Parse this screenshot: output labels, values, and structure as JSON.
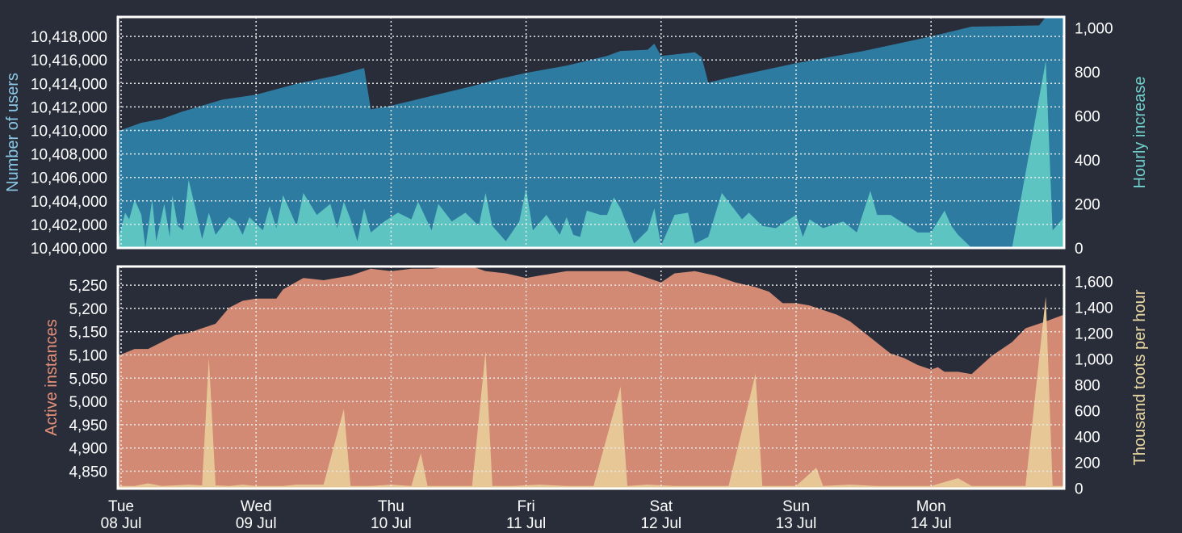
{
  "chart_data": [
    {
      "type": "area",
      "title": "",
      "x_categories": [
        {
          "day": "Tue",
          "date": "08 Jul"
        },
        {
          "day": "Wed",
          "date": "09 Jul"
        },
        {
          "day": "Thu",
          "date": "10 Jul"
        },
        {
          "day": "Fri",
          "date": "11 Jul"
        },
        {
          "day": "Sat",
          "date": "12 Jul"
        },
        {
          "day": "Sun",
          "date": "13 Jul"
        },
        {
          "day": "Mon",
          "date": "14 Jul"
        }
      ],
      "ylabel_left": "Number of users",
      "ylabel_right": "Hourly increase",
      "ylim_left": [
        10400000,
        10419000
      ],
      "ylim_right": [
        0,
        1050
      ],
      "yticks_left": [
        "10,400,000",
        "10,402,000",
        "10,404,000",
        "10,406,000",
        "10,408,000",
        "10,410,000",
        "10,412,000",
        "10,414,000",
        "10,416,000",
        "10,418,000"
      ],
      "yticks_right": [
        "0",
        "200",
        "400",
        "600",
        "800",
        "1,000"
      ],
      "grid": true,
      "series": [
        {
          "axis": "left",
          "color": "#2e7ba1",
          "points": [
            [
              0,
              10409600
            ],
            [
              0.15,
              10410300
            ],
            [
              0.3,
              10410600
            ],
            [
              0.45,
              10411200
            ],
            [
              0.6,
              10411700
            ],
            [
              0.75,
              10412200
            ],
            [
              1,
              10412600
            ],
            [
              1.3,
              10413500
            ],
            [
              1.6,
              10414200
            ],
            [
              1.8,
              10414800
            ],
            [
              1.85,
              10411400
            ],
            [
              2,
              10411700
            ],
            [
              2.3,
              10412500
            ],
            [
              2.6,
              10413300
            ],
            [
              2.8,
              10413900
            ],
            [
              3,
              10414400
            ],
            [
              3.3,
              10415000
            ],
            [
              3.6,
              10415800
            ],
            [
              3.7,
              10416200
            ],
            [
              3.9,
              10416300
            ],
            [
              3.95,
              10416800
            ],
            [
              4.0,
              10415800
            ],
            [
              4.25,
              10416100
            ],
            [
              4.3,
              10415700
            ],
            [
              4.35,
              10413600
            ],
            [
              4.5,
              10414000
            ],
            [
              5,
              10415200
            ],
            [
              5.5,
              10416200
            ],
            [
              6,
              10417400
            ],
            [
              6.3,
              10418200
            ],
            [
              6.8,
              10418300
            ],
            [
              6.85,
              10419000
            ],
            [
              7,
              10419000
            ]
          ]
        },
        {
          "axis": "right",
          "color": "#5ec4c2",
          "points": [
            [
              0,
              30
            ],
            [
              0.03,
              160
            ],
            [
              0.06,
              130
            ],
            [
              0.1,
              220
            ],
            [
              0.15,
              150
            ],
            [
              0.18,
              0
            ],
            [
              0.23,
              220
            ],
            [
              0.26,
              30
            ],
            [
              0.32,
              200
            ],
            [
              0.36,
              50
            ],
            [
              0.38,
              240
            ],
            [
              0.42,
              100
            ],
            [
              0.46,
              80
            ],
            [
              0.5,
              310
            ],
            [
              0.55,
              180
            ],
            [
              0.6,
              40
            ],
            [
              0.65,
              160
            ],
            [
              0.7,
              60
            ],
            [
              0.8,
              140
            ],
            [
              0.85,
              120
            ],
            [
              0.9,
              60
            ],
            [
              0.95,
              140
            ],
            [
              1.05,
              80
            ],
            [
              1.1,
              190
            ],
            [
              1.15,
              90
            ],
            [
              1.2,
              240
            ],
            [
              1.3,
              100
            ],
            [
              1.35,
              250
            ],
            [
              1.45,
              150
            ],
            [
              1.55,
              200
            ],
            [
              1.6,
              90
            ],
            [
              1.65,
              210
            ],
            [
              1.7,
              130
            ],
            [
              1.75,
              30
            ],
            [
              1.8,
              180
            ],
            [
              1.85,
              70
            ],
            [
              1.95,
              120
            ],
            [
              2.05,
              160
            ],
            [
              2.15,
              130
            ],
            [
              2.2,
              210
            ],
            [
              2.3,
              80
            ],
            [
              2.35,
              200
            ],
            [
              2.45,
              120
            ],
            [
              2.55,
              160
            ],
            [
              2.65,
              100
            ],
            [
              2.7,
              250
            ],
            [
              2.75,
              100
            ],
            [
              2.85,
              30
            ],
            [
              2.95,
              120
            ],
            [
              3.0,
              270
            ],
            [
              3.05,
              80
            ],
            [
              3.15,
              150
            ],
            [
              3.25,
              60
            ],
            [
              3.3,
              140
            ],
            [
              3.35,
              60
            ],
            [
              3.4,
              50
            ],
            [
              3.45,
              170
            ],
            [
              3.55,
              150
            ],
            [
              3.6,
              150
            ],
            [
              3.65,
              230
            ],
            [
              3.7,
              180
            ],
            [
              3.8,
              20
            ],
            [
              3.9,
              80
            ],
            [
              3.95,
              180
            ],
            [
              4.0,
              10
            ],
            [
              4.1,
              150
            ],
            [
              4.2,
              160
            ],
            [
              4.25,
              20
            ],
            [
              4.35,
              50
            ],
            [
              4.45,
              250
            ],
            [
              4.6,
              130
            ],
            [
              4.65,
              160
            ],
            [
              4.75,
              100
            ],
            [
              4.85,
              90
            ],
            [
              5.0,
              150
            ],
            [
              5.05,
              50
            ],
            [
              5.1,
              130
            ],
            [
              5.2,
              90
            ],
            [
              5.35,
              120
            ],
            [
              5.45,
              70
            ],
            [
              5.55,
              260
            ],
            [
              5.6,
              150
            ],
            [
              5.7,
              150
            ],
            [
              5.8,
              110
            ],
            [
              5.9,
              70
            ],
            [
              6.0,
              70
            ],
            [
              6.1,
              170
            ],
            [
              6.15,
              100
            ],
            [
              6.2,
              60
            ],
            [
              6.3,
              0
            ],
            [
              6.5,
              0
            ],
            [
              6.6,
              0
            ],
            [
              6.85,
              850
            ],
            [
              6.9,
              80
            ],
            [
              7,
              140
            ]
          ]
        }
      ]
    },
    {
      "type": "area",
      "title": "",
      "ylabel_left": "Active instances",
      "ylabel_right": "Thousand toots per hour",
      "ylim_left": [
        4810,
        5295
      ],
      "ylim_right": [
        0,
        1700
      ],
      "yticks_left": [
        "4,850",
        "4,900",
        "4,950",
        "5,000",
        "5,050",
        "5,100",
        "5,150",
        "5,200",
        "5,250"
      ],
      "yticks_right": [
        "0",
        "200",
        "400",
        "600",
        "800",
        "1,000",
        "1,200",
        "1,400",
        "1,600"
      ],
      "grid": true,
      "series": [
        {
          "axis": "left",
          "color": "#d38a74",
          "points": [
            [
              0,
              5100
            ],
            [
              0.1,
              5115
            ],
            [
              0.2,
              5115
            ],
            [
              0.3,
              5130
            ],
            [
              0.4,
              5145
            ],
            [
              0.5,
              5150
            ],
            [
              0.6,
              5160
            ],
            [
              0.7,
              5170
            ],
            [
              0.8,
              5205
            ],
            [
              0.9,
              5220
            ],
            [
              1,
              5225
            ],
            [
              1.15,
              5225
            ],
            [
              1.2,
              5245
            ],
            [
              1.35,
              5270
            ],
            [
              1.5,
              5265
            ],
            [
              1.7,
              5275
            ],
            [
              1.85,
              5290
            ],
            [
              2,
              5285
            ],
            [
              2.15,
              5290
            ],
            [
              2.3,
              5290
            ],
            [
              2.45,
              5295
            ],
            [
              2.6,
              5295
            ],
            [
              2.7,
              5285
            ],
            [
              2.85,
              5280
            ],
            [
              3.0,
              5270
            ],
            [
              3.1,
              5275
            ],
            [
              3.3,
              5285
            ],
            [
              3.45,
              5285
            ],
            [
              3.6,
              5285
            ],
            [
              3.75,
              5285
            ],
            [
              3.85,
              5275
            ],
            [
              4.0,
              5260
            ],
            [
              4.1,
              5280
            ],
            [
              4.25,
              5285
            ],
            [
              4.4,
              5275
            ],
            [
              4.55,
              5260
            ],
            [
              4.7,
              5250
            ],
            [
              4.8,
              5240
            ],
            [
              4.9,
              5215
            ],
            [
              5.0,
              5215
            ],
            [
              5.1,
              5210
            ],
            [
              5.2,
              5200
            ],
            [
              5.3,
              5190
            ],
            [
              5.4,
              5175
            ],
            [
              5.55,
              5140
            ],
            [
              5.7,
              5105
            ],
            [
              5.8,
              5095
            ],
            [
              5.9,
              5080
            ],
            [
              6.0,
              5070
            ],
            [
              6.05,
              5075
            ],
            [
              6.1,
              5065
            ],
            [
              6.2,
              5065
            ],
            [
              6.3,
              5060
            ],
            [
              6.45,
              5100
            ],
            [
              6.6,
              5130
            ],
            [
              6.7,
              5160
            ],
            [
              6.85,
              5175
            ],
            [
              7,
              5190
            ]
          ]
        },
        {
          "axis": "right",
          "color": "#e8c797",
          "points": [
            [
              0,
              20
            ],
            [
              0.1,
              20
            ],
            [
              0.2,
              40
            ],
            [
              0.3,
              20
            ],
            [
              0.4,
              25
            ],
            [
              0.5,
              30
            ],
            [
              0.6,
              25
            ],
            [
              0.65,
              1000
            ],
            [
              0.7,
              25
            ],
            [
              0.8,
              20
            ],
            [
              0.9,
              30
            ],
            [
              1.0,
              20
            ],
            [
              1.2,
              20
            ],
            [
              1.3,
              30
            ],
            [
              1.5,
              30
            ],
            [
              1.65,
              610
            ],
            [
              1.7,
              20
            ],
            [
              1.85,
              20
            ],
            [
              2.0,
              30
            ],
            [
              2.15,
              20
            ],
            [
              2.22,
              270
            ],
            [
              2.27,
              20
            ],
            [
              2.4,
              20
            ],
            [
              2.6,
              20
            ],
            [
              2.7,
              1050
            ],
            [
              2.75,
              20
            ],
            [
              2.9,
              20
            ],
            [
              3.1,
              30
            ],
            [
              3.3,
              20
            ],
            [
              3.5,
              20
            ],
            [
              3.7,
              780
            ],
            [
              3.75,
              20
            ],
            [
              3.9,
              30
            ],
            [
              4.1,
              20
            ],
            [
              4.3,
              20
            ],
            [
              4.5,
              20
            ],
            [
              4.7,
              880
            ],
            [
              4.75,
              20
            ],
            [
              4.9,
              20
            ],
            [
              5.0,
              20
            ],
            [
              5.15,
              160
            ],
            [
              5.2,
              20
            ],
            [
              5.4,
              30
            ],
            [
              5.6,
              20
            ],
            [
              6.0,
              20
            ],
            [
              6.2,
              80
            ],
            [
              6.3,
              20
            ],
            [
              6.5,
              20
            ],
            [
              6.7,
              20
            ],
            [
              6.85,
              1470
            ],
            [
              6.9,
              20
            ],
            [
              7,
              20
            ]
          ]
        }
      ]
    }
  ]
}
